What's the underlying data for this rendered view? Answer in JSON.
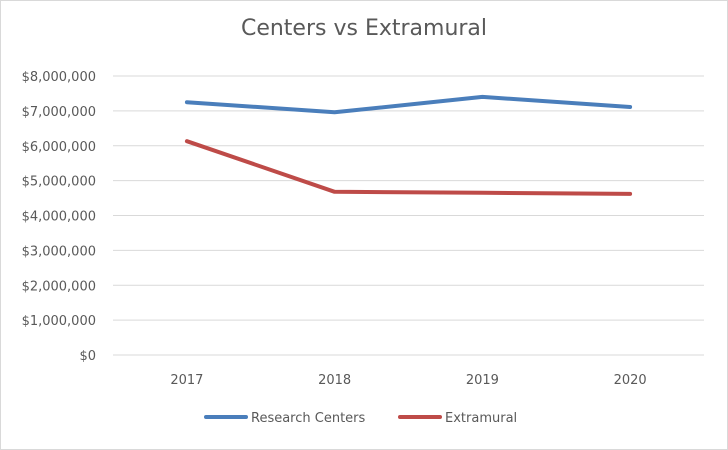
{
  "chart_data": {
    "type": "line",
    "title": "Centers vs Extramural",
    "categories": [
      "2017",
      "2018",
      "2019",
      "2020"
    ],
    "series": [
      {
        "name": "Research Centers",
        "values": [
          7250000,
          6960000,
          7400000,
          7110000
        ],
        "color": "#4a7ebb"
      },
      {
        "name": "Extramural",
        "values": [
          6130000,
          4680000,
          4650000,
          4620000
        ],
        "color": "#be4b48"
      }
    ],
    "ylim": [
      0,
      8000000
    ],
    "y_ticks": [
      0,
      1000000,
      2000000,
      3000000,
      4000000,
      5000000,
      6000000,
      7000000,
      8000000
    ],
    "y_tick_labels": [
      "$0",
      "$1,000,000",
      "$2,000,000",
      "$3,000,000",
      "$4,000,000",
      "$5,000,000",
      "$6,000,000",
      "$7,000,000",
      "$8,000,000"
    ],
    "grid": "horizontal",
    "gridline_color": "#d9d9d9",
    "legend_position": "bottom"
  }
}
